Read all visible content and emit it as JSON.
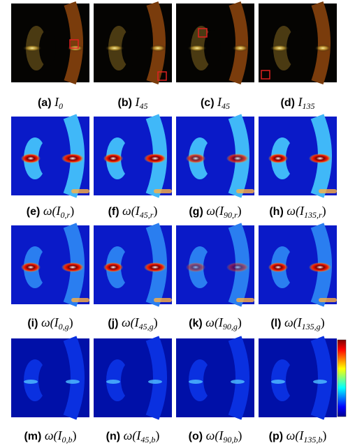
{
  "figure": {
    "panels": [
      {
        "label": "(a)",
        "var": "I",
        "sub": "0"
      },
      {
        "label": "(b)",
        "var": "I",
        "sub": "45"
      },
      {
        "label": "(c)",
        "var": "I",
        "sub": "45"
      },
      {
        "label": "(d)",
        "var": "I",
        "sub": "135"
      },
      {
        "label": "(e)",
        "prefix": "ω(",
        "var": "I",
        "sub": "0,r",
        "suffix": ")"
      },
      {
        "label": "(f)",
        "prefix": "ω(",
        "var": "I",
        "sub": "45,r",
        "suffix": ")"
      },
      {
        "label": "(g)",
        "prefix": "ω(",
        "var": "I",
        "sub": "90,r",
        "suffix": ")"
      },
      {
        "label": "(h)",
        "prefix": "ω(",
        "var": "I",
        "sub": "135,r",
        "suffix": ")"
      },
      {
        "label": "(i)",
        "prefix": "ω(",
        "var": "I",
        "sub": "0,g",
        "suffix": ")"
      },
      {
        "label": "(j)",
        "prefix": "ω(",
        "var": "I",
        "sub": "45,g",
        "suffix": ")"
      },
      {
        "label": "(k)",
        "prefix": "ω(",
        "var": "I",
        "sub": "90,g",
        "suffix": ")"
      },
      {
        "label": "(l)",
        "prefix": "ω(",
        "var": "I",
        "sub": "135,g",
        "suffix": ")"
      },
      {
        "label": "(m)",
        "prefix": "ω(",
        "var": "I",
        "sub": "0,b",
        "suffix": ")"
      },
      {
        "label": "(n)",
        "prefix": "ω(",
        "var": "I",
        "sub": "45,b",
        "suffix": ")"
      },
      {
        "label": "(o)",
        "prefix": "ω(",
        "var": "I",
        "sub": "90,b",
        "suffix": ")"
      },
      {
        "label": "(p)",
        "prefix": "ω(",
        "var": "I",
        "sub": "135,b",
        "suffix": ")"
      }
    ]
  }
}
